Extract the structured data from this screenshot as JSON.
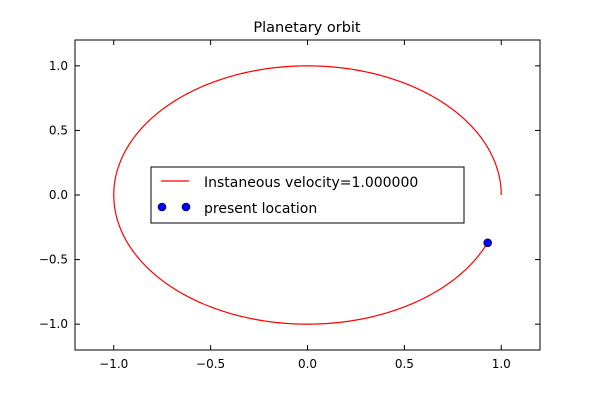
{
  "chart_data": {
    "type": "line",
    "title": "Planetary orbit",
    "xlabel": "",
    "ylabel": "",
    "xlim": [
      -1.2,
      1.2
    ],
    "ylim": [
      -1.2,
      1.2
    ],
    "xticks": [
      -1.0,
      -0.5,
      0.0,
      0.5,
      1.0
    ],
    "yticks": [
      -1.0,
      -0.5,
      0.0,
      0.5,
      1.0
    ],
    "xtick_labels": [
      "−1.0",
      "−0.5",
      "0.0",
      "0.5",
      "1.0"
    ],
    "ytick_labels": [
      "−1.0",
      "−0.5",
      "0.0",
      "0.5",
      "1.0"
    ],
    "grid": false,
    "legend_position": "center-left",
    "series": [
      {
        "name": "Instaneous velocity=1.000000",
        "kind": "line",
        "color": "#ff0000",
        "orbit": {
          "center": [
            0.0,
            0.0
          ],
          "radius": 1.0,
          "start_angle_deg": 0,
          "end_angle_deg": 338
        }
      },
      {
        "name": "present location",
        "kind": "marker",
        "color": "#0000ff",
        "points": [
          {
            "x": 0.93,
            "y": -0.37
          }
        ]
      }
    ]
  }
}
